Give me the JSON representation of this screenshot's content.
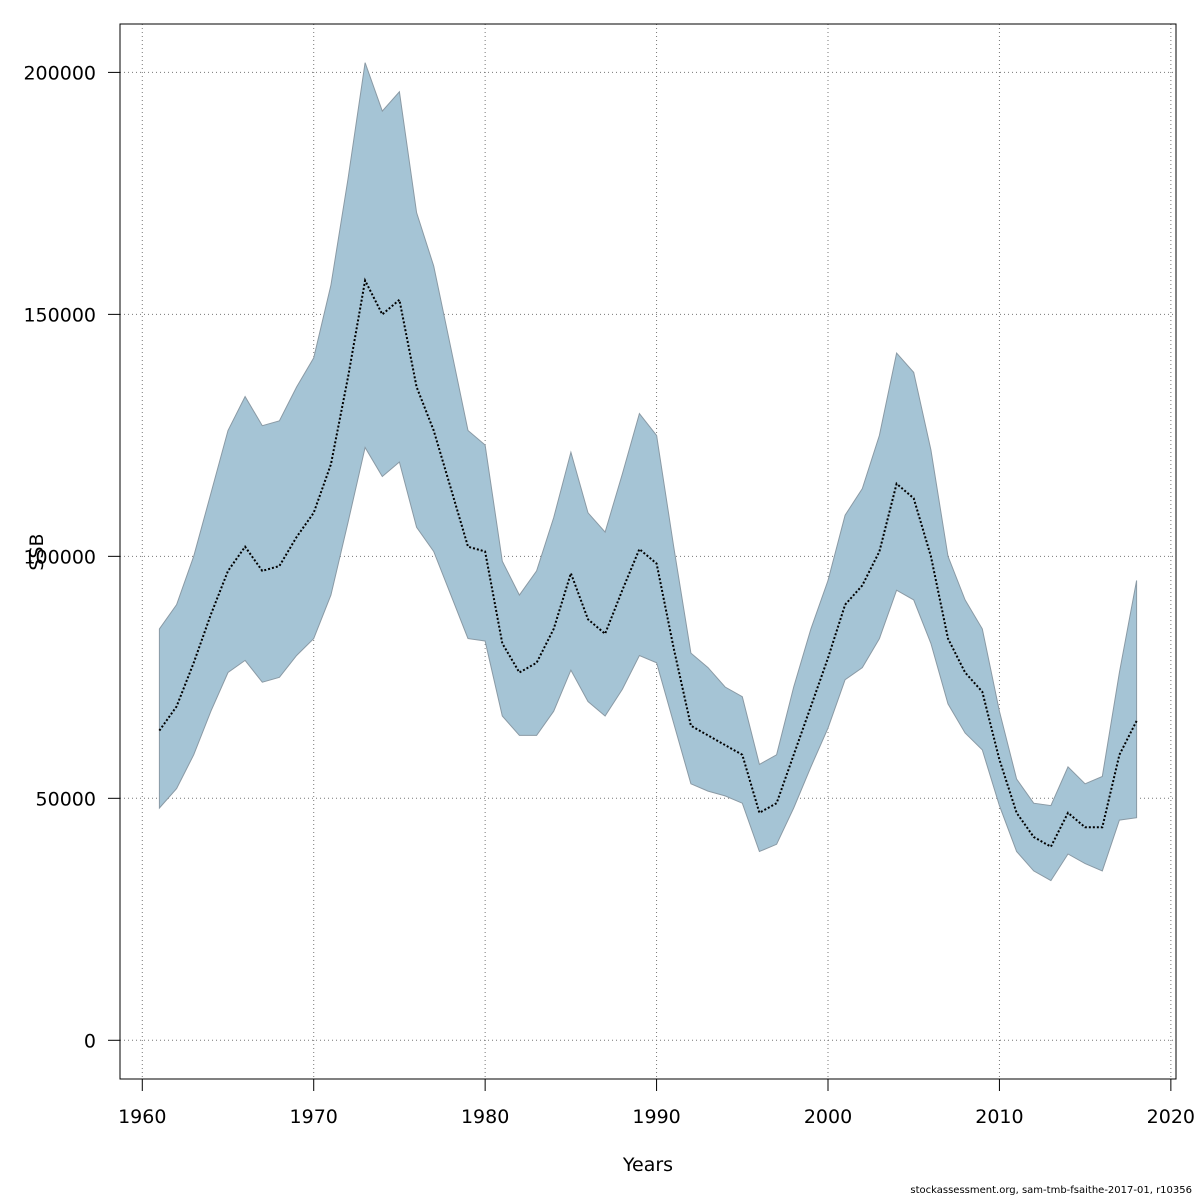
{
  "chart_data": {
    "type": "area",
    "title": "",
    "xlabel": "Years",
    "ylabel": "SSB",
    "xlim": [
      1958.7,
      2020.3
    ],
    "ylim": [
      -8000,
      210000
    ],
    "xticks": [
      1960,
      1970,
      1980,
      1990,
      2000,
      2010,
      2020
    ],
    "yticks": [
      0,
      50000,
      100000,
      150000,
      200000
    ],
    "grid": true,
    "band_color": "#a5c4d5",
    "band_edge_color": "#8a9aa5",
    "line_color": "#000000",
    "x": [
      1961,
      1962,
      1963,
      1964,
      1965,
      1966,
      1967,
      1968,
      1969,
      1970,
      1971,
      1972,
      1973,
      1974,
      1975,
      1976,
      1977,
      1978,
      1979,
      1980,
      1981,
      1982,
      1983,
      1984,
      1985,
      1986,
      1987,
      1988,
      1989,
      1990,
      1991,
      1992,
      1993,
      1994,
      1995,
      1996,
      1997,
      1998,
      1999,
      2000,
      2001,
      2002,
      2003,
      2004,
      2005,
      2006,
      2007,
      2008,
      2009,
      2010,
      2011,
      2012,
      2013,
      2014,
      2015,
      2016,
      2017,
      2018
    ],
    "series": [
      {
        "name": "SSB",
        "values": [
          64000,
          69000,
          78000,
          88000,
          97000,
          102000,
          97000,
          98000,
          104000,
          109000,
          119000,
          137000,
          157000,
          150000,
          153000,
          135000,
          126000,
          114000,
          102000,
          101000,
          82000,
          76000,
          78000,
          85000,
          96500,
          87000,
          84000,
          93000,
          101500,
          98500,
          81000,
          65000,
          63000,
          61000,
          59000,
          47000,
          49000,
          59000,
          69000,
          79000,
          90000,
          94000,
          101000,
          115000,
          112000,
          100000,
          83000,
          76000,
          72000,
          58000,
          47000,
          42000,
          40000,
          47000,
          44000,
          44000,
          59000,
          66000
        ]
      },
      {
        "name": "Upper",
        "values": [
          85000,
          90000,
          100000,
          113000,
          126000,
          133000,
          127000,
          128000,
          135000,
          141000,
          156000,
          178000,
          202000,
          192000,
          196000,
          171000,
          160000,
          143000,
          126000,
          123000,
          99000,
          92000,
          97000,
          108000,
          121500,
          109000,
          105000,
          117000,
          129500,
          125000,
          102000,
          80000,
          77000,
          73000,
          71000,
          57000,
          59000,
          73000,
          85000,
          95000,
          108500,
          114000,
          125000,
          142000,
          138000,
          122000,
          100000,
          91000,
          85000,
          68000,
          54000,
          49000,
          48500,
          56500,
          53000,
          54500,
          76000,
          95000
        ]
      },
      {
        "name": "Lower",
        "values": [
          48000,
          52000,
          59000,
          68000,
          76000,
          78500,
          74000,
          75000,
          79500,
          83000,
          92000,
          107000,
          122500,
          116500,
          119500,
          106000,
          101000,
          92000,
          83000,
          82500,
          67000,
          63000,
          63000,
          68000,
          76500,
          70000,
          67000,
          72500,
          79500,
          78000,
          65500,
          53000,
          51500,
          50500,
          49000,
          39000,
          40500,
          48000,
          56500,
          64500,
          74500,
          77000,
          83000,
          93000,
          91000,
          82000,
          69500,
          63500,
          60000,
          48500,
          39000,
          35000,
          33000,
          38500,
          36500,
          35000,
          45500,
          46000
        ]
      }
    ]
  },
  "footer": "stockassessment.org, sam-tmb-fsaithe-2017-01, r10356"
}
